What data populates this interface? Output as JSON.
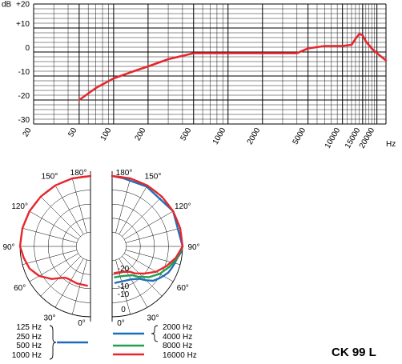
{
  "model": "CK 99 L",
  "colors": {
    "grid": "#000000",
    "curve": "#e8262d",
    "blue": "#1f6fb8",
    "green": "#22a04a",
    "red": "#e8262d"
  },
  "freq_response": {
    "unit_y": "dB",
    "unit_x": "Hz",
    "y_ticks": [
      "+20",
      "+10",
      "0",
      "-10",
      "-20",
      "-30"
    ],
    "x_ticks": [
      "20",
      "50",
      "100",
      "200",
      "500",
      "1000",
      "2000",
      "5000",
      "10000",
      "15000",
      "20000"
    ]
  },
  "polar": {
    "angle_labels": [
      "180°",
      "150°",
      "120°",
      "90°",
      "60°",
      "30°",
      "0°"
    ],
    "db_labels": [
      "-20",
      "-10",
      "-10",
      "0"
    ]
  },
  "legend": {
    "left_labels": [
      "125 Hz",
      "250 Hz",
      "500 Hz",
      "1000 Hz"
    ],
    "right_labels": [
      "2000 Hz",
      "4000 Hz",
      "8000 Hz",
      "16000 Hz"
    ]
  },
  "chart_data": [
    {
      "type": "line",
      "x_scale": "log",
      "xlim": [
        20,
        24000
      ],
      "ylim": [
        -30,
        20
      ],
      "xlabel": "Hz",
      "ylabel": "dB",
      "grid": true,
      "series": [
        {
          "x": [
            50,
            70,
            100,
            150,
            200,
            300,
            500,
            700,
            1000,
            2000,
            3000,
            4000,
            5000,
            7000,
            10000,
            12000,
            13000,
            14000,
            15000,
            16000,
            18000,
            20000,
            24000
          ],
          "y": [
            -20,
            -15,
            -11,
            -8,
            -6,
            -3,
            -0.5,
            -0.5,
            -0.5,
            -0.5,
            -0.5,
            -0.5,
            1.5,
            2.5,
            2.5,
            3,
            5.5,
            7.5,
            7,
            4.5,
            1.5,
            -0.5,
            -3.5
          ]
        }
      ]
    },
    {
      "type": "polar",
      "rlim": [
        -25,
        0
      ],
      "r_ticks": [
        -20,
        -10,
        0
      ],
      "theta_ticks_deg": [
        0,
        30,
        60,
        90,
        120,
        150,
        180
      ],
      "series": [
        {
          "name": "125 Hz, 250 Hz, 500 Hz, 1000 Hz",
          "side": "left",
          "color": "#e8262d",
          "theta_deg": [
            180,
            165,
            150,
            135,
            120,
            105,
            90,
            80,
            70,
            60,
            50,
            45,
            40,
            36,
            20,
            5
          ],
          "r_db": [
            0,
            0,
            0,
            0,
            0,
            0,
            0,
            -1,
            -2,
            -4,
            -7,
            -9,
            -10.5,
            -11,
            -11,
            -11
          ]
        },
        {
          "name": "2000 Hz, 4000 Hz",
          "side": "right",
          "color": "#1f6fb8",
          "theta_deg": [
            5,
            20,
            30,
            40,
            45,
            50,
            55,
            60,
            65,
            70,
            75,
            80,
            85,
            90,
            120,
            150,
            170,
            180
          ],
          "r_db": [
            -12,
            -12,
            -11.5,
            -10,
            -8,
            -6,
            -5,
            -4,
            -3,
            -2.5,
            -2,
            -1.5,
            -0.5,
            0,
            0,
            -0.5,
            -0.5,
            0
          ]
        },
        {
          "name": "8000 Hz",
          "side": "right",
          "color": "#22a04a",
          "theta_deg": [
            5,
            15,
            25,
            35,
            40,
            50,
            60,
            70,
            80,
            90
          ],
          "r_db": [
            -14,
            -14,
            -13.5,
            -12.5,
            -11,
            -8,
            -5.5,
            -3.5,
            -1.5,
            0
          ]
        },
        {
          "name": "16000 Hz",
          "side": "right",
          "color": "#e8262d",
          "theta_deg": [
            5,
            15,
            25,
            35,
            40,
            50,
            60,
            70,
            80,
            90,
            105,
            120,
            135,
            150,
            165,
            180
          ],
          "r_db": [
            -15.5,
            -15.5,
            -15,
            -14,
            -12.5,
            -10,
            -7,
            -4.5,
            -2,
            0,
            0,
            0,
            0,
            0,
            0,
            0
          ]
        }
      ]
    }
  ]
}
